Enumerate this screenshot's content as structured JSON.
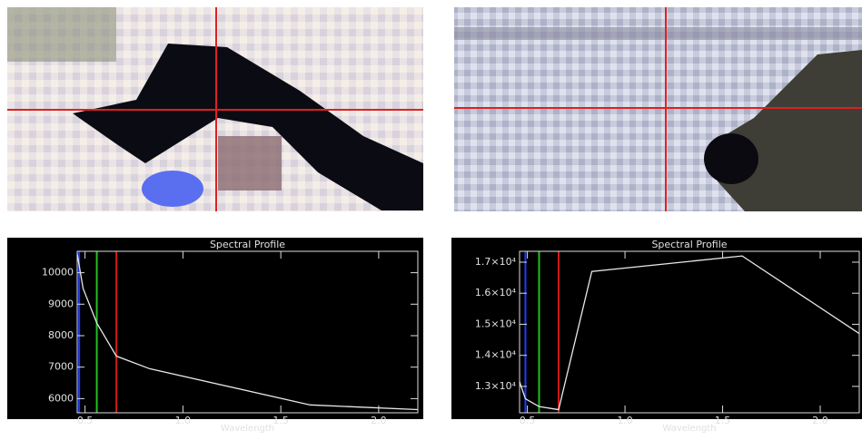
{
  "chart_data": [
    {
      "type": "line",
      "title": "Spectral Profile",
      "x_label": "Wavelength",
      "x": [
        0.46,
        0.49,
        0.56,
        0.66,
        0.83,
        1.65,
        2.2
      ],
      "values": [
        10600,
        9500,
        8400,
        7350,
        6950,
        5800,
        5650
      ],
      "color": "#e8e8e8",
      "markers": [
        {
          "x": 0.47,
          "color": "#1a3cff"
        },
        {
          "x": 0.56,
          "color": "#22c022"
        },
        {
          "x": 0.66,
          "color": "#d01818"
        }
      ],
      "xlim": [
        0.46,
        2.2
      ],
      "ylim": [
        5550,
        10680
      ],
      "xticks": [
        {
          "value": 0.5,
          "label": "0.5"
        },
        {
          "value": 1.0,
          "label": "1.0"
        },
        {
          "value": 1.5,
          "label": "1.5"
        },
        {
          "value": 2.0,
          "label": "2.0"
        }
      ],
      "yticks": [
        6000,
        7000,
        8000,
        9000,
        10000
      ]
    },
    {
      "type": "line",
      "title": "Spectral Profile",
      "x_label": "Wavelength",
      "x": [
        0.46,
        0.49,
        0.56,
        0.66,
        0.83,
        1.6,
        2.2
      ],
      "values": [
        13150,
        12600,
        12350,
        12250,
        16700,
        17200,
        14700
      ],
      "color": "#e8e8e8",
      "markers": [
        {
          "x": 0.49,
          "color": "#1a3cff"
        },
        {
          "x": 0.56,
          "color": "#22c022"
        },
        {
          "x": 0.66,
          "color": "#d01818"
        }
      ],
      "xlim": [
        0.46,
        2.2
      ],
      "ylim": [
        12150,
        17350
      ],
      "xticks": [
        {
          "value": 0.5,
          "label": "0.5"
        },
        {
          "value": 1.0,
          "label": "1.0"
        },
        {
          "value": 1.5,
          "label": "1.5"
        },
        {
          "value": 2.0,
          "label": "2.0"
        }
      ],
      "yticks": [
        {
          "value": 13000,
          "label": "1.3×10⁴"
        },
        {
          "value": 14000,
          "label": "1.4×10⁴"
        },
        {
          "value": 15000,
          "label": "1.5×10⁴"
        },
        {
          "value": 16000,
          "label": "1.6×10⁴"
        },
        {
          "value": 17000,
          "label": "1.7×10⁴"
        }
      ]
    }
  ]
}
